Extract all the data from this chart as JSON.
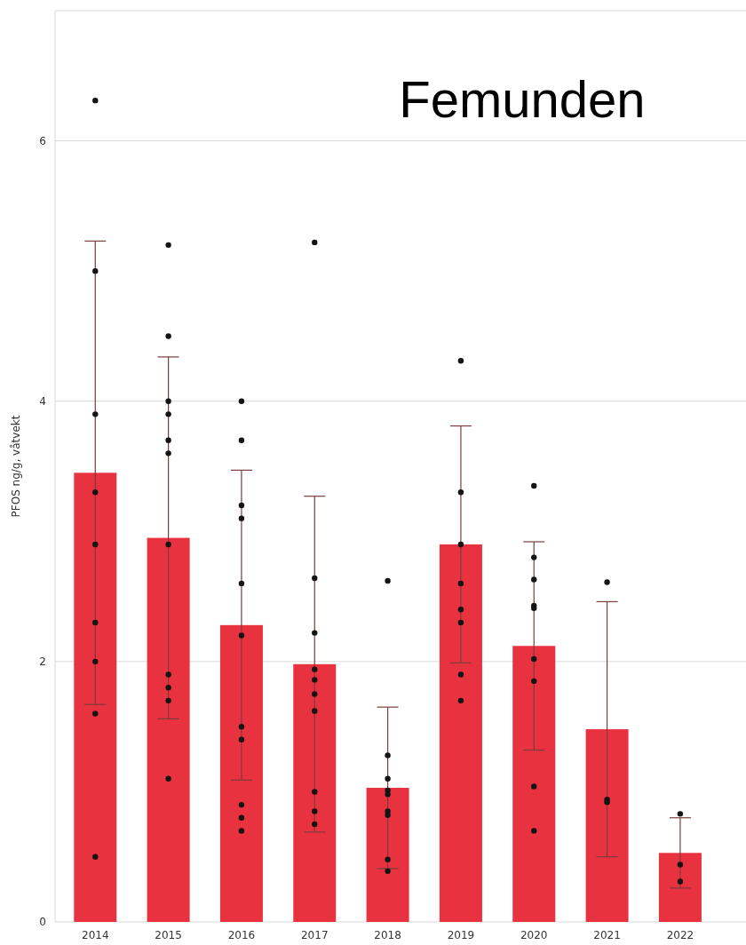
{
  "chart_data": {
    "type": "bar",
    "title": "Femunden",
    "ylabel": "PFOS ng/g, våtvekt",
    "x": [
      2014,
      2015,
      2016,
      2017,
      2018,
      2019,
      2020,
      2021,
      2022
    ],
    "series": [
      {
        "color": "#e8323f",
        "values": [
          3.45,
          2.95,
          2.28,
          1.98,
          1.03,
          2.9,
          2.12,
          1.48,
          0.53
        ],
        "errors": [
          1.78,
          1.39,
          1.19,
          1.29,
          0.62,
          0.91,
          0.8,
          0.98,
          0.27
        ]
      },
      {
        "type": "scatter",
        "color": "#141414",
        "x": [
          2014,
          2014,
          2014,
          2014,
          2014,
          2014,
          2014,
          2014,
          2014,
          2015,
          2015,
          2015,
          2015,
          2015,
          2015,
          2015,
          2015,
          2015,
          2015,
          2015,
          2016,
          2016,
          2016,
          2016,
          2016,
          2016,
          2016,
          2016,
          2016,
          2016,
          2016,
          2017,
          2017,
          2017,
          2017,
          2017,
          2017,
          2017,
          2017,
          2017,
          2017,
          2018,
          2018,
          2018,
          2018,
          2018,
          2018,
          2018,
          2018,
          2018,
          2019,
          2019,
          2019,
          2019,
          2019,
          2019,
          2019,
          2019,
          2020,
          2020,
          2020,
          2020,
          2020,
          2020,
          2020,
          2020,
          2020,
          2021,
          2021,
          2021,
          2022,
          2022,
          2022
        ],
        "values": [
          6.31,
          5.0,
          3.9,
          3.3,
          2.9,
          2.3,
          2.0,
          1.6,
          0.5,
          5.2,
          4.5,
          4.0,
          3.9,
          3.7,
          3.6,
          2.9,
          1.9,
          1.8,
          1.7,
          1.1,
          4.0,
          3.7,
          3.2,
          3.1,
          2.6,
          2.2,
          1.5,
          1.4,
          0.9,
          0.8,
          0.7,
          5.22,
          2.64,
          2.22,
          1.94,
          1.86,
          1.75,
          1.62,
          1.0,
          0.85,
          0.75,
          2.62,
          1.28,
          1.1,
          1.01,
          0.98,
          0.85,
          0.82,
          0.48,
          0.39,
          4.31,
          3.3,
          2.9,
          2.6,
          2.4,
          2.3,
          1.9,
          1.7,
          3.35,
          2.8,
          2.63,
          2.43,
          2.41,
          2.02,
          1.85,
          1.04,
          0.7,
          2.61,
          0.94,
          0.92,
          0.83,
          0.44,
          0.31
        ]
      }
    ],
    "xlim": [
      2013.45,
      2022.9
    ],
    "xticks": [
      2014,
      2015,
      2016,
      2017,
      2018,
      2019,
      2020,
      2021,
      2022
    ],
    "ylim": [
      0,
      7
    ],
    "yticks": [
      0,
      2,
      4,
      6
    ],
    "grid": "y",
    "marker": "circle"
  }
}
